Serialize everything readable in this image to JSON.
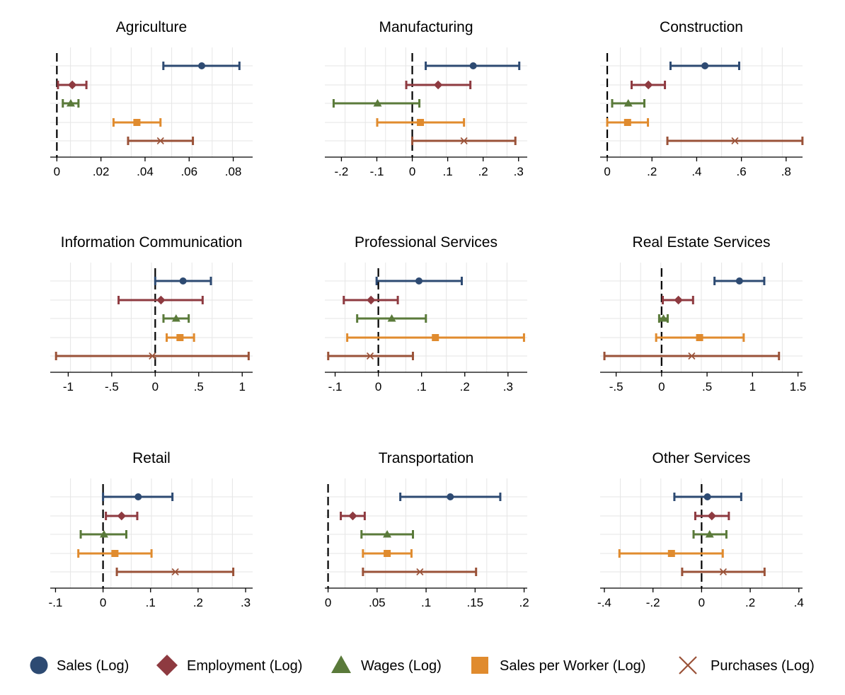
{
  "colors": {
    "sales": "#2d4a72",
    "employment": "#8e3a40",
    "wages": "#5a7a3a",
    "sales_per_worker": "#e08b2e",
    "purchases": "#9a5238",
    "grid": "#e6e6e6",
    "axis": "#000000"
  },
  "legend": [
    {
      "key": "sales",
      "label": "Sales (Log)",
      "marker": "circle"
    },
    {
      "key": "employment",
      "label": "Employment (Log)",
      "marker": "diamond"
    },
    {
      "key": "wages",
      "label": "Wages (Log)",
      "marker": "triangle"
    },
    {
      "key": "sales_per_worker",
      "label": "Sales per Worker (Log)",
      "marker": "square"
    },
    {
      "key": "purchases",
      "label": "Purchases (Log)",
      "marker": "x"
    }
  ],
  "chart_data": [
    {
      "type": "coefplot",
      "title": "Agriculture",
      "xlim": [
        -0.003,
        0.0888
      ],
      "ticks": [
        0,
        0.02,
        0.04,
        0.06,
        0.08
      ],
      "tick_labels": [
        "0",
        ".02",
        ".04",
        ".06",
        ".08"
      ],
      "series": [
        {
          "key": "sales",
          "est": 0.0657,
          "lo": 0.0483,
          "hi": 0.0828
        },
        {
          "key": "employment",
          "est": 0.007,
          "lo": 0.0005,
          "hi": 0.0134
        },
        {
          "key": "wages",
          "est": 0.0063,
          "lo": 0.0027,
          "hi": 0.0098
        },
        {
          "key": "sales_per_worker",
          "est": 0.0363,
          "lo": 0.0257,
          "hi": 0.047
        },
        {
          "key": "purchases",
          "est": 0.047,
          "lo": 0.0323,
          "hi": 0.0617
        }
      ]
    },
    {
      "type": "coefplot",
      "title": "Manufacturing",
      "xlim": [
        -0.2468,
        0.3245
      ],
      "ticks": [
        -0.2,
        -0.1,
        0,
        0.1,
        0.2,
        0.3
      ],
      "tick_labels": [
        "-.2",
        "-.1",
        "0",
        ".1",
        ".2",
        ".3"
      ],
      "series": [
        {
          "key": "sales",
          "est": 0.172,
          "lo": 0.038,
          "hi": 0.302
        },
        {
          "key": "employment",
          "est": 0.073,
          "lo": -0.017,
          "hi": 0.164
        },
        {
          "key": "wages",
          "est": -0.098,
          "lo": -0.222,
          "hi": 0.02
        },
        {
          "key": "sales_per_worker",
          "est": 0.023,
          "lo": -0.099,
          "hi": 0.146
        },
        {
          "key": "purchases",
          "est": 0.146,
          "lo": 0.0,
          "hi": 0.291
        }
      ]
    },
    {
      "type": "coefplot",
      "title": "Construction",
      "xlim": [
        -0.0318,
        0.8734
      ],
      "ticks": [
        0,
        0.2,
        0.4,
        0.6,
        0.8
      ],
      "tick_labels": [
        "0",
        ".2",
        ".4",
        ".6",
        ".8"
      ],
      "series": [
        {
          "key": "sales",
          "est": 0.437,
          "lo": 0.283,
          "hi": 0.59
        },
        {
          "key": "employment",
          "est": 0.184,
          "lo": 0.109,
          "hi": 0.258
        },
        {
          "key": "wages",
          "est": 0.094,
          "lo": 0.022,
          "hi": 0.166
        },
        {
          "key": "sales_per_worker",
          "est": 0.091,
          "lo": 0.0,
          "hi": 0.182
        },
        {
          "key": "purchases",
          "est": 0.571,
          "lo": 0.269,
          "hi": 0.873
        }
      ]
    },
    {
      "type": "coefplot",
      "title": "Information Communication",
      "xlim": [
        -1.2066,
        1.12
      ],
      "ticks": [
        -1,
        -0.5,
        0,
        0.5,
        1
      ],
      "tick_labels": [
        "-1",
        "-.5",
        "0",
        ".5",
        "1"
      ],
      "series": [
        {
          "key": "sales",
          "est": 0.32,
          "lo": 0.0,
          "hi": 0.64
        },
        {
          "key": "employment",
          "est": 0.066,
          "lo": -0.421,
          "hi": 0.545
        },
        {
          "key": "wages",
          "est": 0.24,
          "lo": 0.095,
          "hi": 0.385
        },
        {
          "key": "sales_per_worker",
          "est": 0.285,
          "lo": 0.132,
          "hi": 0.446
        },
        {
          "key": "purchases",
          "est": -0.033,
          "lo": -1.14,
          "hi": 1.074
        }
      ]
    },
    {
      "type": "coefplot",
      "title": "Professional Services",
      "xlim": [
        -0.1238,
        0.3445
      ],
      "ticks": [
        -0.1,
        0,
        0.1,
        0.2,
        0.3
      ],
      "tick_labels": [
        "-.1",
        "0",
        ".1",
        ".2",
        ".3"
      ],
      "series": [
        {
          "key": "sales",
          "est": 0.094,
          "lo": -0.004,
          "hi": 0.193
        },
        {
          "key": "employment",
          "est": -0.017,
          "lo": -0.08,
          "hi": 0.045
        },
        {
          "key": "wages",
          "est": 0.031,
          "lo": -0.049,
          "hi": 0.11
        },
        {
          "key": "sales_per_worker",
          "est": 0.132,
          "lo": -0.072,
          "hi": 0.337
        },
        {
          "key": "purchases",
          "est": -0.019,
          "lo": -0.116,
          "hi": 0.08
        }
      ]
    },
    {
      "type": "coefplot",
      "title": "Real Estate Services",
      "xlim": [
        -0.676,
        1.55
      ],
      "ticks": [
        -0.5,
        0,
        0.5,
        1,
        1.5
      ],
      "tick_labels": [
        "-.5",
        "0",
        ".5",
        "1",
        "1.5"
      ],
      "series": [
        {
          "key": "sales",
          "est": 0.856,
          "lo": 0.582,
          "hi": 1.129
        },
        {
          "key": "employment",
          "est": 0.185,
          "lo": 0.013,
          "hi": 0.346
        },
        {
          "key": "wages",
          "est": 0.021,
          "lo": -0.027,
          "hi": 0.067
        },
        {
          "key": "sales_per_worker",
          "est": 0.418,
          "lo": -0.06,
          "hi": 0.903
        },
        {
          "key": "purchases",
          "est": 0.331,
          "lo": -0.629,
          "hi": 1.291
        }
      ]
    },
    {
      "type": "coefplot",
      "title": "Retail",
      "xlim": [
        -0.1111,
        0.3148
      ],
      "ticks": [
        -0.1,
        0,
        0.1,
        0.2,
        0.3
      ],
      "tick_labels": [
        "-.1",
        "0",
        ".1",
        ".2",
        ".3"
      ],
      "series": [
        {
          "key": "sales",
          "est": 0.074,
          "lo": 0.0,
          "hi": 0.146
        },
        {
          "key": "employment",
          "est": 0.039,
          "lo": 0.006,
          "hi": 0.072
        },
        {
          "key": "wages",
          "est": 0.002,
          "lo": -0.047,
          "hi": 0.049
        },
        {
          "key": "sales_per_worker",
          "est": 0.025,
          "lo": -0.052,
          "hi": 0.102
        },
        {
          "key": "purchases",
          "est": 0.152,
          "lo": 0.029,
          "hi": 0.274
        }
      ]
    },
    {
      "type": "coefplot",
      "title": "Transportation",
      "xlim": [
        -0.0033,
        0.2032
      ],
      "ticks": [
        0,
        0.05,
        0.1,
        0.15,
        0.2
      ],
      "tick_labels": [
        "0",
        ".05",
        ".1",
        ".15",
        ".2"
      ],
      "series": [
        {
          "key": "sales",
          "est": 0.1247,
          "lo": 0.0737,
          "hi": 0.1757
        },
        {
          "key": "employment",
          "est": 0.0252,
          "lo": 0.013,
          "hi": 0.0374
        },
        {
          "key": "wages",
          "est": 0.0603,
          "lo": 0.0341,
          "hi": 0.0866
        },
        {
          "key": "sales_per_worker",
          "est": 0.0603,
          "lo": 0.0356,
          "hi": 0.0851
        },
        {
          "key": "purchases",
          "est": 0.0937,
          "lo": 0.0356,
          "hi": 0.151
        }
      ]
    },
    {
      "type": "coefplot",
      "title": "Other Services",
      "xlim": [
        -0.4174,
        0.4152
      ],
      "ticks": [
        -0.4,
        -0.2,
        0,
        0.2,
        0.4
      ],
      "tick_labels": [
        "-.4",
        "-.2",
        "0",
        ".2",
        ".4"
      ],
      "series": [
        {
          "key": "sales",
          "est": 0.024,
          "lo": -0.112,
          "hi": 0.163
        },
        {
          "key": "employment",
          "est": 0.042,
          "lo": -0.026,
          "hi": 0.112
        },
        {
          "key": "wages",
          "est": 0.033,
          "lo": -0.033,
          "hi": 0.102
        },
        {
          "key": "sales_per_worker",
          "est": -0.124,
          "lo": -0.338,
          "hi": 0.087
        },
        {
          "key": "purchases",
          "est": 0.089,
          "lo": -0.08,
          "hi": 0.259
        }
      ]
    }
  ]
}
